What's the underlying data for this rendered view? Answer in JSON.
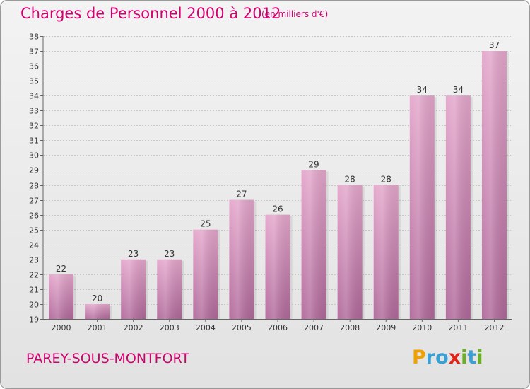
{
  "header": {
    "title": "Charges de Personnel 2000 à 2012",
    "subtitle": "(en milliers d'€)"
  },
  "footer": {
    "commune": "PAREY-SOUS-MONTFORT",
    "logo_text": "Proxiti",
    "logo_letters": [
      {
        "ch": "P",
        "color": "#f0a000"
      },
      {
        "ch": "r",
        "color": "#39a0d6"
      },
      {
        "ch": "o",
        "color": "#39a0d6"
      },
      {
        "ch": "x",
        "color": "#e2231a"
      },
      {
        "ch": "i",
        "color": "#6ab023"
      },
      {
        "ch": "t",
        "color": "#39a0d6"
      },
      {
        "ch": "i",
        "color": "#6ab023"
      }
    ]
  },
  "colors": {
    "title": "#d1006f",
    "bar_top": "#e4a6cb",
    "bar_bottom": "#b0689a",
    "gridline": "#c8c8c8"
  },
  "chart_data": {
    "type": "bar",
    "categories": [
      "2000",
      "2001",
      "2002",
      "2003",
      "2004",
      "2005",
      "2006",
      "2007",
      "2008",
      "2009",
      "2010",
      "2011",
      "2012"
    ],
    "values": [
      22,
      20,
      23,
      23,
      25,
      27,
      26,
      29,
      28,
      28,
      34,
      34,
      37
    ],
    "title": "Charges de Personnel 2000 à 2012",
    "subtitle": "(en milliers d'€)",
    "ylim": [
      19,
      38
    ],
    "yticks": [
      19,
      20,
      21,
      22,
      23,
      24,
      25,
      26,
      27,
      28,
      29,
      30,
      31,
      32,
      33,
      34,
      35,
      36,
      37,
      38
    ],
    "grid": true,
    "legend": "none"
  }
}
